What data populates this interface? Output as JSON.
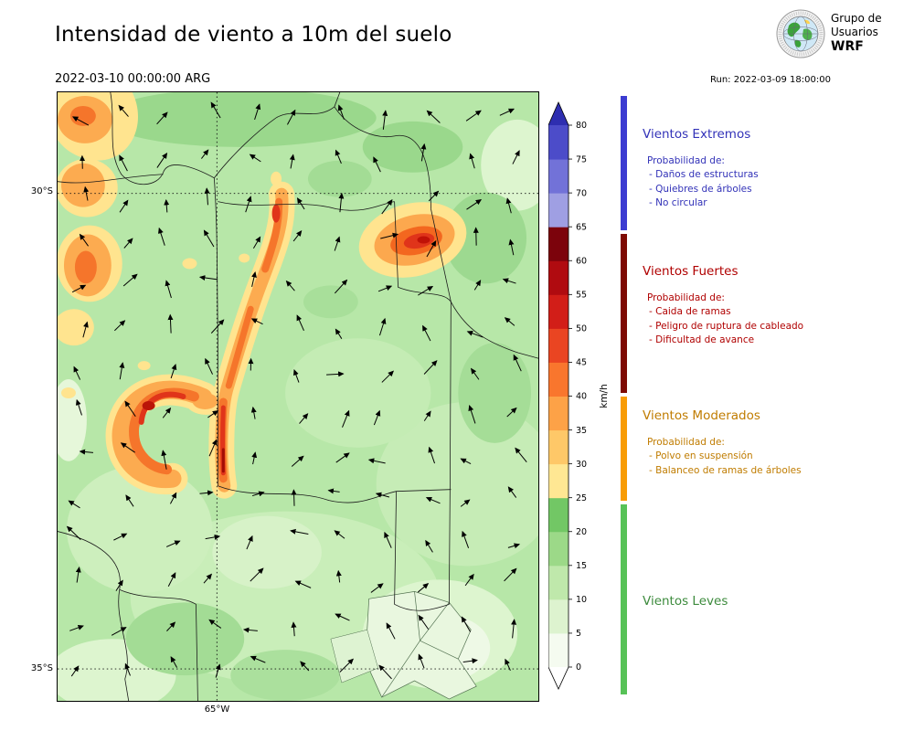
{
  "header": {
    "title": "Intensidad de viento a 10m del suelo",
    "valid_time": "2022-03-10 00:00:00 ARG",
    "run_label": "Run: 2022-03-09 18:00:00"
  },
  "logo": {
    "line1": "Grupo de",
    "line2": "Usuarios",
    "line3": "WRF"
  },
  "map": {
    "lat_ticks": [
      {
        "label": "30°S"
      },
      {
        "label": "35°S"
      }
    ],
    "lon_ticks": [
      {
        "label": "65°W"
      }
    ]
  },
  "chart_data": {
    "type": "heatmap",
    "subtype": "filled-contour wind speed map with wind direction arrows",
    "title": "Intensidad de viento a 10m del suelo",
    "valid_time": "2022-03-10 00:00:00 ARG",
    "model_run": "Run: 2022-03-09 18:00:00",
    "units": "km/h",
    "lat_ticks": [
      "30°S",
      "35°S"
    ],
    "lon_ticks": [
      "65°W"
    ],
    "overlays": [
      "wind-direction-arrows",
      "province-boundaries",
      "dotted-lat-lon-gridlines"
    ],
    "colorbar": {
      "label": "km/h",
      "ticks": [
        0,
        5,
        10,
        15,
        20,
        25,
        30,
        35,
        40,
        45,
        50,
        55,
        60,
        65,
        70,
        75,
        80
      ],
      "levels": [
        {
          "range": [
            0,
            5
          ],
          "color": "#f5fbf0"
        },
        {
          "range": [
            5,
            10
          ],
          "color": "#ddf3cf"
        },
        {
          "range": [
            10,
            15
          ],
          "color": "#bfe8ab"
        },
        {
          "range": [
            15,
            20
          ],
          "color": "#9cd988"
        },
        {
          "range": [
            20,
            25
          ],
          "color": "#72c765"
        },
        {
          "range": [
            25,
            30
          ],
          "color": "#ffe793"
        },
        {
          "range": [
            30,
            35
          ],
          "color": "#fec868"
        },
        {
          "range": [
            35,
            40
          ],
          "color": "#fda247"
        },
        {
          "range": [
            40,
            45
          ],
          "color": "#f9762d"
        },
        {
          "range": [
            45,
            50
          ],
          "color": "#ea4522"
        },
        {
          "range": [
            50,
            55
          ],
          "color": "#d21e18"
        },
        {
          "range": [
            55,
            60
          ],
          "color": "#b00b10"
        },
        {
          "range": [
            60,
            65
          ],
          "color": "#7c030c"
        },
        {
          "range": [
            65,
            70
          ],
          "color": "#9f9fe3"
        },
        {
          "range": [
            70,
            75
          ],
          "color": "#7272d8"
        },
        {
          "range": [
            75,
            80
          ],
          "color": "#4c4cc9"
        }
      ],
      "over_color": "#2e2eb0",
      "under_color": "#ffffff"
    },
    "wind_categories": [
      {
        "name": "Vientos Leves",
        "range_kmh": [
          0,
          25
        ]
      },
      {
        "name": "Vientos Moderados",
        "range_kmh": [
          25,
          40
        ]
      },
      {
        "name": "Vientos Fuertes",
        "range_kmh": [
          40,
          65
        ]
      },
      {
        "name": "Vientos Extremos",
        "range_kmh": [
          65,
          80
        ]
      }
    ]
  },
  "legend": {
    "strip": [
      {
        "id": "extremos",
        "color": "#3c3cd1",
        "frac": 0.229
      },
      {
        "id": "fuertes",
        "color": "#7e0a03",
        "frac": 0.27
      },
      {
        "id": "moderados",
        "color": "#f89c05",
        "frac": 0.177
      },
      {
        "id": "leves",
        "color": "#57c257",
        "frac": 0.324
      }
    ],
    "sections": [
      {
        "title": "Vientos Extremos",
        "color": "#3232b8",
        "subtitle": "Probabilidad de:",
        "items": [
          "- Daños de estructuras",
          "- Quiebres de árboles",
          "- No circular"
        ]
      },
      {
        "title": "Vientos Fuertes",
        "color": "#b00000",
        "subtitle": "Probabilidad de:",
        "items": [
          "- Caida de ramas",
          "- Peligro de ruptura de cableado",
          "- Dificultad de avance"
        ]
      },
      {
        "title": "Vientos Moderados",
        "color": "#c07c00",
        "subtitle": "Probabilidad de:",
        "items": [
          "- Polvo en suspensión",
          "- Balanceo de ramas de árboles"
        ]
      },
      {
        "title": "Vientos Leves",
        "color": "#3d8b3d",
        "subtitle": "",
        "items": []
      }
    ]
  }
}
